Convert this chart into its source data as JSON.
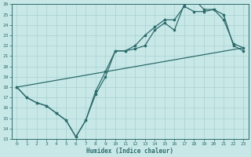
{
  "xlabel": "Humidex (Indice chaleur)",
  "xlim": [
    -0.5,
    23.5
  ],
  "ylim": [
    13,
    26
  ],
  "yticks": [
    13,
    14,
    15,
    16,
    17,
    18,
    19,
    20,
    21,
    22,
    23,
    24,
    25,
    26
  ],
  "xticks": [
    0,
    1,
    2,
    3,
    4,
    5,
    6,
    7,
    8,
    9,
    10,
    11,
    12,
    13,
    14,
    15,
    16,
    17,
    18,
    19,
    20,
    21,
    22,
    23
  ],
  "line_color": "#2e6b6b",
  "bg_color": "#c8e8e8",
  "grid_color": "#a8d0d0",
  "line1_x": [
    0,
    1,
    2,
    3,
    4,
    5,
    6,
    7,
    8,
    9,
    10,
    11,
    12,
    13,
    14,
    15,
    16,
    17,
    18,
    19,
    20,
    21,
    22,
    23
  ],
  "line1_y": [
    18,
    17,
    16.5,
    16.2,
    15.5,
    14.8,
    13.2,
    14.8,
    17.3,
    19.0,
    21.5,
    21.5,
    21.7,
    22.0,
    23.5,
    24.2,
    23.5,
    26.0,
    26.5,
    25.5,
    25.5,
    25.0,
    22.0,
    21.5
  ],
  "line2_x": [
    0,
    1,
    2,
    3,
    4,
    5,
    6,
    7,
    8,
    9,
    10,
    11,
    12,
    13,
    14,
    15,
    16,
    17,
    18,
    19,
    20,
    21,
    22,
    23
  ],
  "line2_y": [
    18,
    17,
    16.5,
    16.2,
    15.5,
    14.8,
    13.2,
    14.8,
    17.6,
    19.5,
    21.5,
    21.5,
    22.0,
    23.0,
    23.8,
    24.5,
    24.5,
    25.8,
    25.3,
    25.3,
    25.5,
    24.5,
    22.2,
    21.8
  ],
  "line3_x": [
    0,
    23
  ],
  "line3_y": [
    18,
    21.8
  ]
}
